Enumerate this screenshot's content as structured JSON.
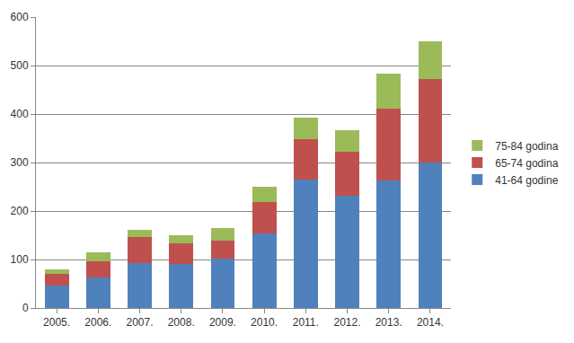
{
  "chart_data": {
    "type": "bar",
    "stacked": true,
    "categories": [
      "2005.",
      "2006.",
      "2007.",
      "2008.",
      "2009.",
      "2010.",
      "2011.",
      "2012.",
      "2013.",
      "2014."
    ],
    "series": [
      {
        "name": "41-64 godine",
        "color": "#4f81bd",
        "values": [
          46,
          63,
          93,
          90,
          101,
          153,
          265,
          232,
          263,
          300
        ]
      },
      {
        "name": "65-74 godina",
        "color": "#c0504d",
        "values": [
          24,
          34,
          54,
          43,
          37,
          66,
          83,
          90,
          149,
          173
        ]
      },
      {
        "name": "75-84 godina",
        "color": "#9bbb59",
        "values": [
          10,
          17,
          15,
          17,
          26,
          31,
          45,
          45,
          71,
          77
        ]
      }
    ],
    "ylim": [
      0,
      600
    ],
    "yticks": [
      0,
      100,
      200,
      300,
      400,
      500,
      600
    ],
    "grid": true,
    "legend": "right"
  }
}
